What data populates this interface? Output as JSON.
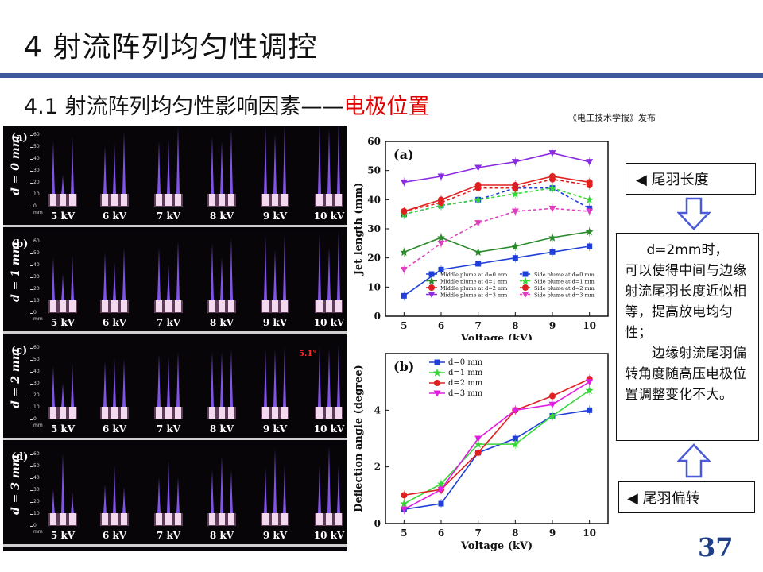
{
  "slide": {
    "title": "4 射流阵列均匀性调控",
    "subtitle_main": "4.1 射流阵列均匀性影响因素——",
    "subtitle_highlight": "电极位置",
    "source_note": "《电工技术学报》发布",
    "page_number": "37",
    "accent_color": "#3c5a9a",
    "highlight_color": "#e00000"
  },
  "photo_panel": {
    "rows": [
      {
        "panel": "(a)",
        "label": "d = 0 mm",
        "jet_heights": [
          [
            44,
            16,
            48
          ],
          [
            40,
            42,
            52
          ],
          [
            44,
            46,
            56
          ],
          [
            48,
            44,
            54
          ],
          [
            56,
            50,
            58
          ],
          [
            58,
            54,
            60
          ]
        ]
      },
      {
        "panel": "(b)",
        "label": "d = 1 mm",
        "jet_heights": [
          [
            36,
            22,
            38
          ],
          [
            40,
            32,
            44
          ],
          [
            44,
            30,
            50
          ],
          [
            48,
            36,
            52
          ],
          [
            54,
            42,
            56
          ],
          [
            56,
            44,
            58
          ]
        ]
      },
      {
        "panel": "(c)",
        "label": "d = 2 mm",
        "jet_heights": [
          [
            34,
            20,
            36
          ],
          [
            38,
            40,
            40
          ],
          [
            44,
            42,
            46
          ],
          [
            46,
            46,
            48
          ],
          [
            48,
            48,
            50
          ],
          [
            50,
            48,
            52
          ]
        ]
      },
      {
        "panel": "(d)",
        "label": "d = 3 mm",
        "jet_heights": [
          [
            20,
            50,
            18
          ],
          [
            24,
            40,
            22
          ],
          [
            30,
            44,
            30
          ],
          [
            36,
            48,
            36
          ],
          [
            38,
            54,
            40
          ],
          [
            40,
            56,
            40
          ]
        ]
      }
    ],
    "voltages": [
      "5 kV",
      "6 kV",
      "7 kV",
      "8 kV",
      "9 kV",
      "10 kV"
    ],
    "ruler_labels": [
      "60",
      "50",
      "40",
      "30",
      "20",
      "10",
      "0"
    ],
    "ruler_unit": "mm",
    "angle_annotation": "5.1°"
  },
  "chart_data": [
    {
      "type": "line",
      "panel_label": "(a)",
      "xlabel": "Voltage (kV)",
      "ylabel": "Jet length (mm)",
      "x": [
        5,
        6,
        7,
        8,
        9,
        10
      ],
      "xlim": [
        4.5,
        10.5
      ],
      "ylim": [
        0,
        60
      ],
      "yticks": [
        0,
        10,
        20,
        30,
        40,
        50,
        60
      ],
      "legend_position": "bottom-right",
      "series": [
        {
          "name": "Middle plume at d=0 mm",
          "values": [
            7,
            16,
            18,
            20,
            22,
            24
          ],
          "color": "#1f3fd6",
          "marker": "square",
          "dash": false
        },
        {
          "name": "Middle plume at d=1 mm",
          "values": [
            22,
            27,
            22,
            24,
            27,
            29
          ],
          "color": "#2a8a2a",
          "marker": "star",
          "dash": false
        },
        {
          "name": "Middle plume at d=2 mm",
          "values": [
            36,
            40,
            45,
            45,
            48,
            46
          ],
          "color": "#e02020",
          "marker": "circle",
          "dash": false
        },
        {
          "name": "Middle plume at d=3 mm",
          "values": [
            46,
            48,
            51,
            53,
            56,
            53
          ],
          "color": "#8a2be2",
          "marker": "triangle-down",
          "dash": false
        },
        {
          "name": "Side plume at d=0 mm",
          "values": [
            35,
            38,
            40,
            44,
            44,
            37
          ],
          "color": "#1f3fd6",
          "marker": "square",
          "dash": true
        },
        {
          "name": "Side plume at d=1 mm",
          "values": [
            35,
            38,
            40,
            42,
            44,
            40
          ],
          "color": "#39d839",
          "marker": "star",
          "dash": true
        },
        {
          "name": "Side plume at d=2 mm",
          "values": [
            36,
            39,
            44,
            44,
            47,
            45
          ],
          "color": "#e02020",
          "marker": "circle",
          "dash": true
        },
        {
          "name": "Side plume at d=3 mm",
          "values": [
            16,
            25,
            32,
            36,
            37,
            36
          ],
          "color": "#e040c0",
          "marker": "triangle-down",
          "dash": true
        }
      ]
    },
    {
      "type": "line",
      "panel_label": "(b)",
      "xlabel": "Voltage (kV)",
      "ylabel": "Deflection angle (degree)",
      "x": [
        5,
        6,
        7,
        8,
        9,
        10
      ],
      "xlim": [
        4.5,
        10.5
      ],
      "ylim": [
        0,
        6
      ],
      "yticks": [
        0,
        2,
        4
      ],
      "legend_position": "top-left",
      "series": [
        {
          "name": "d=0 mm",
          "values": [
            0.5,
            0.7,
            2.5,
            3.0,
            3.8,
            4.0
          ],
          "color": "#1f3fd6",
          "marker": "square",
          "dash": false
        },
        {
          "name": "d=1 mm",
          "values": [
            0.7,
            1.4,
            2.8,
            2.8,
            3.8,
            4.7
          ],
          "color": "#39d839",
          "marker": "star",
          "dash": false
        },
        {
          "name": "d=2 mm",
          "values": [
            1.0,
            1.2,
            2.5,
            4.0,
            4.5,
            5.1
          ],
          "color": "#e02020",
          "marker": "circle",
          "dash": false
        },
        {
          "name": "d=3 mm",
          "values": [
            0.5,
            1.2,
            3.0,
            4.0,
            4.2,
            5.0
          ],
          "color": "#e020e0",
          "marker": "triangle-down",
          "dash": false
        }
      ]
    }
  ],
  "callouts": {
    "tail_length": {
      "icon": "left-triangle-icon",
      "label": "尾羽长度"
    },
    "tail_deflection": {
      "icon": "left-triangle-icon",
      "label": "尾羽偏转"
    },
    "description": {
      "line1": "d=2mm时，",
      "line2": "可以使得中间与边缘射流尾羽长度近似相等，提高放电均匀性；",
      "line3": "边缘射流尾羽偏转角度随高压电极位置调整变化不大。"
    },
    "arrow_color": "#4a5ad8"
  }
}
